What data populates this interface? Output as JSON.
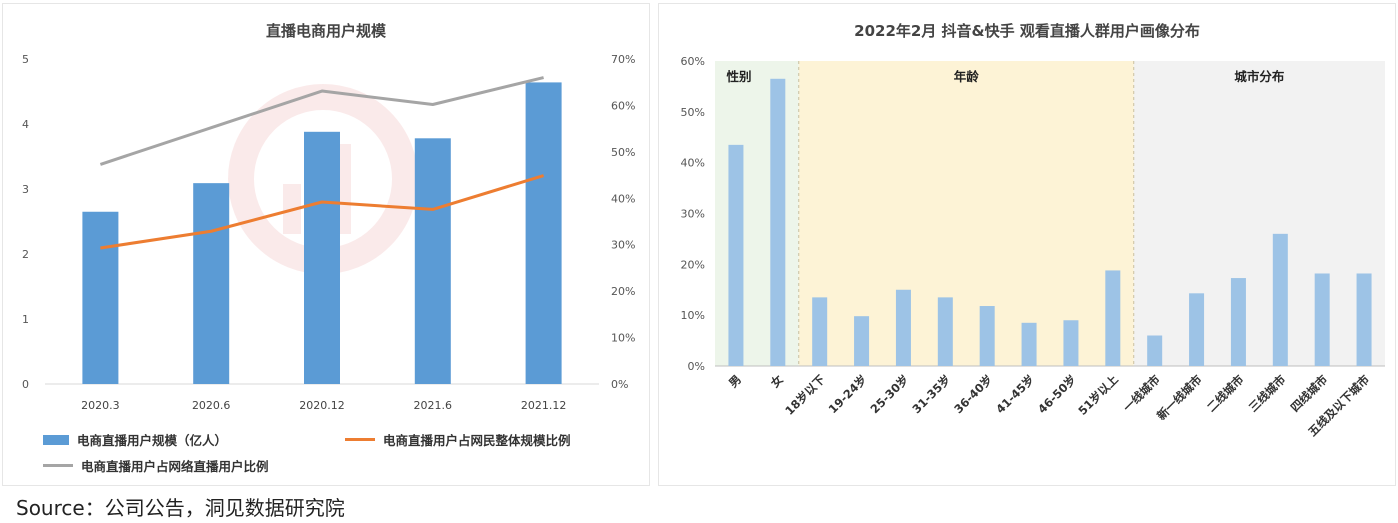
{
  "source_text": "Source：公司公告，洞见数据研究院",
  "colors": {
    "bar_blue": "#5b9bd5",
    "line_orange": "#ed7d31",
    "line_gray": "#a5a5a5",
    "bar_light_blue": "#9dc3e6",
    "seg_gender_bg": "#edf5ea",
    "seg_age_bg": "#fdf3d6",
    "seg_city_bg": "#f2f2f2"
  },
  "chart_data": [
    {
      "type": "bar",
      "title": "直播电商用户规模",
      "categories": [
        "2020.3",
        "2020.6",
        "2020.12",
        "2021.6",
        "2021.12"
      ],
      "series": [
        {
          "name": "电商直播用户规模（亿人）",
          "kind": "bar",
          "axis": "left",
          "values": [
            2.65,
            3.09,
            3.88,
            3.78,
            4.64
          ]
        },
        {
          "name": "电商直播用户占网民整体规模比例",
          "kind": "line",
          "axis": "right",
          "values": [
            29.3,
            32.9,
            39.2,
            37.6,
            44.9
          ]
        },
        {
          "name": "电商直播用户占网络直播用户比例",
          "kind": "line",
          "axis": "right",
          "values": [
            47.3,
            55.2,
            63.1,
            60.2,
            66.0
          ]
        }
      ],
      "left_axis": {
        "ylim": [
          0,
          5
        ],
        "ticks": [
          "0",
          "1",
          "2",
          "3",
          "4",
          "5"
        ]
      },
      "right_axis": {
        "ylim": [
          0,
          70
        ],
        "ticks": [
          "0%",
          "10%",
          "20%",
          "30%",
          "40%",
          "50%",
          "60%",
          "70%"
        ]
      },
      "grid": false,
      "legend_position": "bottom"
    },
    {
      "type": "bar",
      "title": "2022年2月 抖音&快手 观看直播人群用户画像分布",
      "categories": [
        "男",
        "女",
        "18岁以下",
        "19-24岁",
        "25-30岁",
        "31-35岁",
        "36-40岁",
        "41-45岁",
        "46-50岁",
        "51岁以上",
        "一线城市",
        "新一线城市",
        "二线城市",
        "三线城市",
        "四线城市",
        "五线及以下城市"
      ],
      "values": [
        43.5,
        56.5,
        13.5,
        9.8,
        15.0,
        13.5,
        11.8,
        8.5,
        9.0,
        18.8,
        6.0,
        14.3,
        17.3,
        26.0,
        18.2,
        18.2
      ],
      "segments": [
        {
          "label": "性别",
          "from": 0,
          "to": 1
        },
        {
          "label": "年龄",
          "from": 2,
          "to": 9
        },
        {
          "label": "城市分布",
          "from": 10,
          "to": 15
        }
      ],
      "ylim": [
        0,
        60
      ],
      "ticks": [
        "0%",
        "10%",
        "20%",
        "30%",
        "40%",
        "50%",
        "60%"
      ],
      "grid": false
    }
  ]
}
